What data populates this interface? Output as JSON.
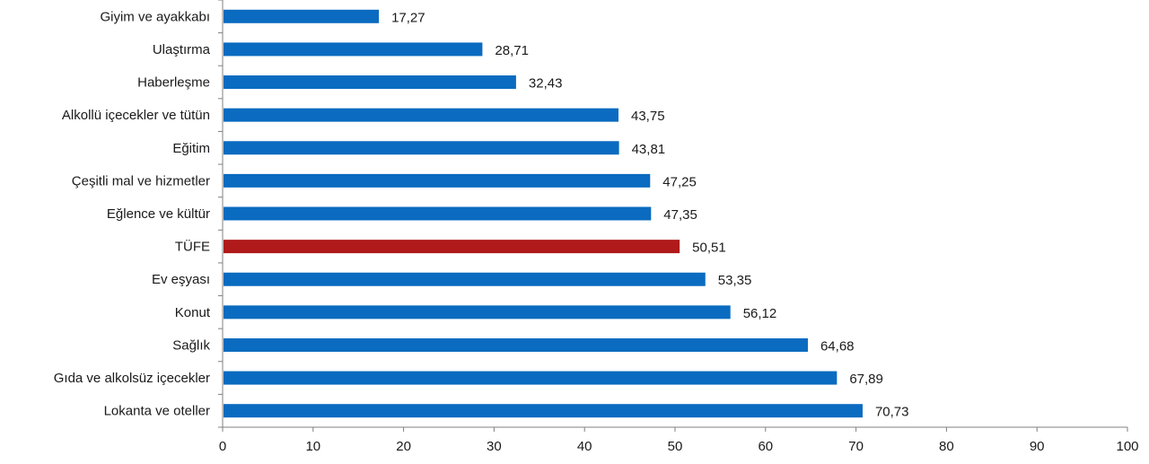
{
  "chart_data": {
    "type": "bar",
    "orientation": "horizontal",
    "title": "",
    "xlabel": "",
    "ylabel": "",
    "xlim": [
      0,
      100
    ],
    "xticks": [
      0,
      10,
      20,
      30,
      40,
      50,
      60,
      70,
      80,
      90,
      100
    ],
    "grid": false,
    "categories": [
      "Giyim ve ayakkabı",
      "Ulaştırma",
      "Haberleşme",
      "Alkollü içecekler ve tütün",
      "Eğitim",
      "Çeşitli mal ve hizmetler",
      "Eğlence ve kültür",
      "TÜFE",
      "Ev eşyası",
      "Konut",
      "Sağlık",
      "Gıda ve alkolsüz içecekler",
      "Lokanta ve oteller"
    ],
    "values": [
      17.27,
      28.71,
      32.43,
      43.75,
      43.81,
      47.25,
      47.35,
      50.51,
      53.35,
      56.12,
      64.68,
      67.89,
      70.73
    ],
    "value_labels": [
      "17,27",
      "28,71",
      "32,43",
      "43,75",
      "43,81",
      "47,25",
      "47,35",
      "50,51",
      "53,35",
      "56,12",
      "64,68",
      "67,89",
      "70,73"
    ],
    "highlight_category": "TÜFE",
    "colors": {
      "bar": "#0a6bc0",
      "highlight": "#b01a1a",
      "axis": "#808080"
    }
  }
}
